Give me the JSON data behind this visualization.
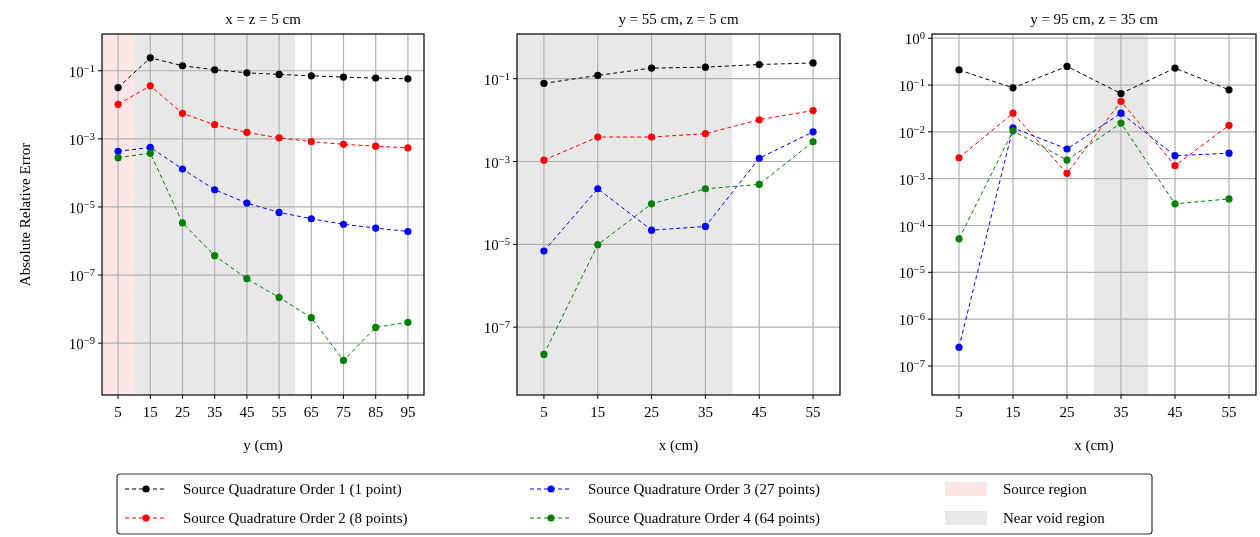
{
  "chart_data": [
    {
      "type": "line",
      "title": "x = z = 5 cm",
      "xlabel": "y (cm)",
      "ylabel": "Absolute Relative Error",
      "log": "y",
      "grid": true,
      "marker": "circle",
      "line_style": "dashed",
      "legend": "bottom",
      "x": [
        5,
        15,
        25,
        35,
        45,
        55,
        65,
        75,
        85,
        95
      ],
      "xlim": [
        0,
        100
      ],
      "xticks": [
        5,
        15,
        25,
        35,
        45,
        55,
        65,
        75,
        85,
        95
      ],
      "ylim": [
        3e-11,
        1.2
      ],
      "yticks": [
        {
          "value": 0.1,
          "label": "10$^{−1}$"
        },
        {
          "value": 0.001,
          "label": "10$^{−3}$"
        },
        {
          "value": 1e-05,
          "label": "10$^{−5}$"
        },
        {
          "value": 1e-07,
          "label": "10$^{−7}$"
        },
        {
          "value": 1e-09,
          "label": "10$^{−9}$"
        }
      ],
      "bands": [
        {
          "axis": "x",
          "from": 0,
          "to": 10,
          "label": "Source region",
          "color": "#fde6e6"
        },
        {
          "axis": "x",
          "from": 10,
          "to": 60,
          "label": "Near void region",
          "color": "#e8e8e8"
        }
      ],
      "series": [
        {
          "name": "Source Quadrature Order 1 (1 point)",
          "color": "#000000",
          "values": [
            0.032,
            0.24,
            0.14,
            0.107,
            0.087,
            0.078,
            0.071,
            0.065,
            0.061,
            0.058
          ]
        },
        {
          "name": "Source Quadrature Order 2 (8 points)",
          "color": "#ff0000",
          "values": [
            0.0103,
            0.036,
            0.0056,
            0.0026,
            0.00154,
            0.00107,
            0.00083,
            0.00069,
            0.00061,
            0.00054
          ]
        },
        {
          "name": "Source Quadrature Order 3 (27 points)",
          "color": "#0000ff",
          "values": [
            0.00043,
            0.00056,
            0.00013,
            3.2e-05,
            1.3e-05,
            6.9e-06,
            4.5e-06,
            3.1e-06,
            2.4e-06,
            1.9e-06
          ]
        },
        {
          "name": "Source Quadrature Order 4 (64 points)",
          "color": "#008000",
          "values": [
            0.00028,
            0.00038,
            3.4e-06,
            3.7e-07,
            7.8e-08,
            2.2e-08,
            5.6e-09,
            3.1e-10,
            2.9e-09,
            4.1e-09
          ]
        }
      ]
    },
    {
      "type": "line",
      "title": "y = 55 cm, z = 5 cm",
      "xlabel": "x (cm)",
      "log": "y",
      "grid": true,
      "marker": "circle",
      "line_style": "dashed",
      "x": [
        5,
        15,
        25,
        35,
        45,
        55
      ],
      "xlim": [
        0,
        60
      ],
      "xticks": [
        5,
        15,
        25,
        35,
        45,
        55
      ],
      "ylim": [
        2.3e-09,
        1.2
      ],
      "yticks": [
        {
          "value": 0.1,
          "label": "10$^{−1}$"
        },
        {
          "value": 0.001,
          "label": "10$^{−3}$"
        },
        {
          "value": 1e-05,
          "label": "10$^{−5}$"
        },
        {
          "value": 1e-07,
          "label": "10$^{−7}$"
        }
      ],
      "bands": [
        {
          "axis": "x",
          "from": 0,
          "to": 40,
          "color": "#e8e8e8"
        }
      ],
      "series": [
        {
          "color": "#000000",
          "values": [
            0.077,
            0.12,
            0.18,
            0.19,
            0.22,
            0.24
          ]
        },
        {
          "color": "#ff0000",
          "values": [
            0.00108,
            0.0039,
            0.0039,
            0.0047,
            0.0102,
            0.017
          ]
        },
        {
          "color": "#0000ff",
          "values": [
            6.9e-06,
            0.00022,
            2.2e-05,
            2.7e-05,
            0.0012,
            0.0052
          ]
        },
        {
          "color": "#008000",
          "values": [
            2.2e-08,
            9.8e-06,
            9.5e-05,
            0.00022,
            0.00028,
            0.003
          ]
        }
      ]
    },
    {
      "type": "line",
      "title": "y = 95 cm, z = 35 cm",
      "xlabel": "x (cm)",
      "log": "y",
      "grid": true,
      "marker": "circle",
      "line_style": "dashed",
      "x": [
        5,
        15,
        25,
        35,
        45,
        55
      ],
      "xlim": [
        0,
        60
      ],
      "xticks": [
        5,
        15,
        25,
        35,
        45,
        55
      ],
      "ylim": [
        2.4e-08,
        1.23
      ],
      "yticks": [
        {
          "value": 1,
          "label": "10$^{0}$"
        },
        {
          "value": 0.1,
          "label": "10$^{−1}$"
        },
        {
          "value": 0.01,
          "label": "10$^{−2}$"
        },
        {
          "value": 0.001,
          "label": "10$^{−3}$"
        },
        {
          "value": 0.0001,
          "label": "10$^{−4}$"
        },
        {
          "value": 1e-05,
          "label": "10$^{−5}$"
        },
        {
          "value": 1e-06,
          "label": "10$^{−6}$"
        },
        {
          "value": 1e-07,
          "label": "10$^{−7}$"
        }
      ],
      "bands": [
        {
          "axis": "x",
          "from": 30,
          "to": 40,
          "color": "#e8e8e8"
        }
      ],
      "series": [
        {
          "color": "#000000",
          "values": [
            0.21,
            0.087,
            0.25,
            0.066,
            0.23,
            0.079
          ]
        },
        {
          "color": "#ff0000",
          "values": [
            0.0028,
            0.025,
            0.0013,
            0.045,
            0.0019,
            0.0138
          ]
        },
        {
          "color": "#0000ff",
          "values": [
            2.5e-07,
            0.0122,
            0.0043,
            0.025,
            0.0031,
            0.0035
          ]
        },
        {
          "color": "#008000",
          "values": [
            5.2e-05,
            0.0105,
            0.0025,
            0.0154,
            0.00029,
            0.00037
          ]
        }
      ]
    }
  ]
}
